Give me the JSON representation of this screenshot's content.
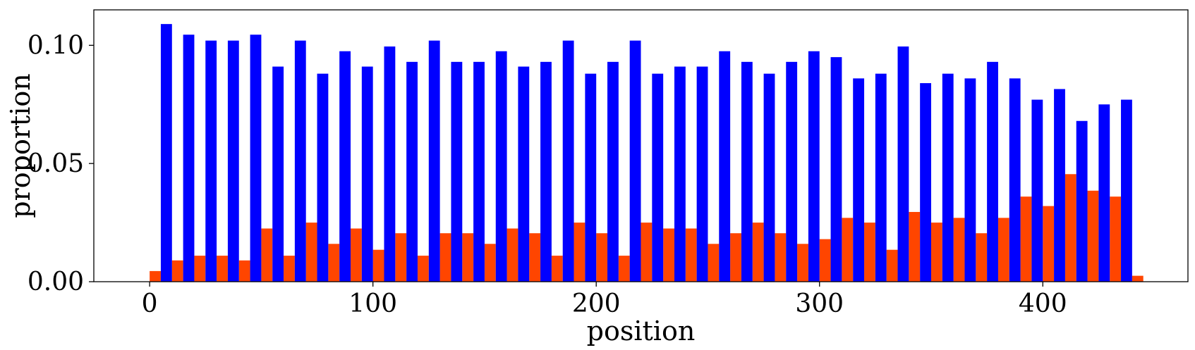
{
  "chart_data": {
    "type": "bar",
    "xlabel": "position",
    "ylabel": "proportion",
    "xlim": [
      -25,
      465
    ],
    "ylim": [
      0,
      0.115
    ],
    "xticks": [
      {
        "value": 0,
        "label": "0"
      },
      {
        "value": 100,
        "label": "100"
      },
      {
        "value": 200,
        "label": "200"
      },
      {
        "value": 300,
        "label": "300"
      },
      {
        "value": 400,
        "label": "400"
      }
    ],
    "yticks": [
      {
        "value": 0,
        "label": "0.00"
      },
      {
        "value": 0.05,
        "label": "0.05"
      },
      {
        "value": 0.1,
        "label": "0.10"
      }
    ],
    "bin_width": 10,
    "bin_starts": [
      0,
      10,
      20,
      30,
      40,
      50,
      60,
      70,
      80,
      90,
      100,
      110,
      120,
      130,
      140,
      150,
      160,
      170,
      180,
      190,
      200,
      210,
      220,
      230,
      240,
      250,
      260,
      270,
      280,
      290,
      300,
      310,
      320,
      330,
      340,
      350,
      360,
      370,
      380,
      390,
      400,
      410,
      420,
      430,
      440
    ],
    "series": [
      {
        "color": "#ff4500",
        "values": [
          0.0045,
          0.009,
          0.011,
          0.011,
          0.009,
          0.0225,
          0.011,
          0.025,
          0.016,
          0.0225,
          0.0135,
          0.0205,
          0.011,
          0.0205,
          0.0205,
          0.016,
          0.0225,
          0.0205,
          0.011,
          0.025,
          0.0205,
          0.011,
          0.025,
          0.0225,
          0.0225,
          0.016,
          0.0205,
          0.025,
          0.0205,
          0.016,
          0.018,
          0.027,
          0.025,
          0.0135,
          0.0295,
          0.025,
          0.027,
          0.0205,
          0.027,
          0.036,
          0.032,
          0.0455,
          0.0385,
          0.036,
          0.0025
        ]
      },
      {
        "color": "#0000ff",
        "values": [
          0.109,
          0.1045,
          0.102,
          0.102,
          0.1045,
          0.091,
          0.102,
          0.088,
          0.0975,
          0.091,
          0.0995,
          0.093,
          0.102,
          0.093,
          0.093,
          0.0975,
          0.091,
          0.093,
          0.102,
          0.088,
          0.093,
          0.102,
          0.088,
          0.091,
          0.091,
          0.0975,
          0.093,
          0.088,
          0.093,
          0.0975,
          0.095,
          0.086,
          0.088,
          0.0995,
          0.084,
          0.088,
          0.086,
          0.093,
          0.086,
          0.077,
          0.0815,
          0.068,
          0.075,
          0.077,
          0
        ]
      }
    ],
    "grid": false,
    "legend": "none"
  }
}
